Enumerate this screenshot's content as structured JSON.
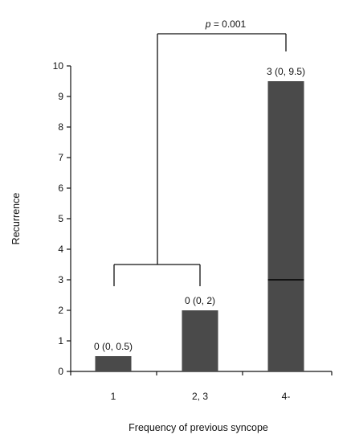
{
  "chart_data": {
    "type": "bar",
    "categories": [
      "1",
      "2, 3",
      "4-"
    ],
    "values": [
      0.5,
      2,
      9.5
    ],
    "medians": [
      0,
      0,
      3
    ],
    "data_labels": [
      "0 (0, 0.5)",
      "0 (0, 2)",
      "3 (0, 9.5)"
    ],
    "title": "",
    "xlabel": "Frequency of previous syncope",
    "ylabel": "Recurrence",
    "ylim": [
      0,
      10
    ],
    "yticks": [
      0,
      1,
      2,
      3,
      4,
      5,
      6,
      7,
      8,
      9,
      10
    ],
    "grid": false,
    "legend": "none",
    "bar_color": "#4a4a4a",
    "annotation": {
      "p_symbol": "p",
      "p_value_text": " = 0.001",
      "compares": [
        [
          "1",
          "2, 3"
        ],
        [
          "4-"
        ]
      ]
    }
  }
}
